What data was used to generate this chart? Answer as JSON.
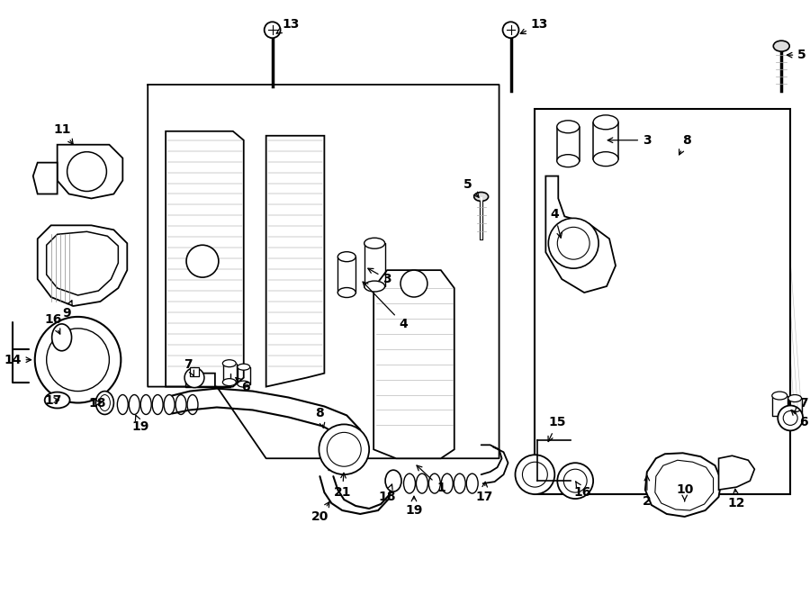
{
  "background": "#ffffff",
  "fig_width": 9.0,
  "fig_height": 6.61,
  "dpi": 100
}
